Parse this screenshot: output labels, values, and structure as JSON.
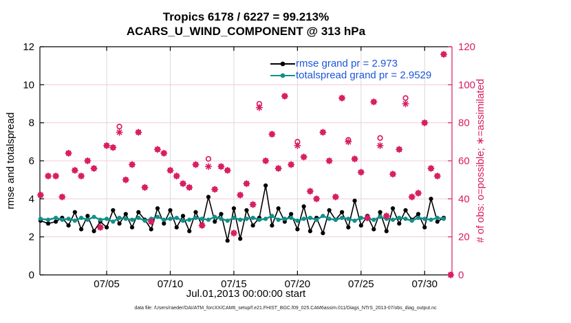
{
  "colors": {
    "pink": "#d81b60",
    "teal": "#12908a",
    "black": "#000000",
    "legend_blue": "#1b56db",
    "grid_pink": "#f3ccd9",
    "grid_gray": "#d9d9d9"
  },
  "header": {
    "title_line1": "Tropics 6178 / 6227 = 99.213%",
    "title_line2": "ACARS_U_WIND_COMPONENT @ 313 hPa"
  },
  "footer": {
    "data_file_text": "data file: /Users/raeder/DAI/ATM_forcXX/CAM6_setup/f.e21.FHIST_BGC.f09_025.CAM6assim.011/Diags_NTrS_2013-07/obs_diag_output.nc"
  },
  "legend": {
    "items": [
      {
        "label": "rmse grand pr = 2.973",
        "color": "#000000"
      },
      {
        "label": "totalspread grand pr = 2.9529",
        "color": "#12908a"
      }
    ]
  },
  "chart_data": {
    "type": "line",
    "title": "Tropics 6178 / 6227 = 99.213%",
    "subtitle": "ACARS_U_WIND_COMPONENT @ 313 hPa",
    "xlabel": "Jul.01,2013 00:00:00 start",
    "ylabel_left": "rmse and totalspread",
    "ylabel_right": "# of obs: o=possible; ∗=assimilated",
    "ylim_left": [
      0,
      12
    ],
    "yticks_left": [
      0,
      2,
      4,
      6,
      8,
      10,
      12
    ],
    "ylim_right": [
      0,
      120
    ],
    "yticks_right": [
      0,
      20,
      40,
      60,
      80,
      100,
      120
    ],
    "x_domain_days": [
      -0.25,
      32.15
    ],
    "xticks": {
      "days": [
        5,
        10,
        15,
        20,
        25,
        30
      ],
      "labels": [
        "07/05",
        "07/10",
        "07/15",
        "07/20",
        "07/25",
        "07/30"
      ]
    },
    "grid": true,
    "legend_position": "top-center-inside",
    "series": [
      {
        "name": "rmse",
        "style": "line-dot",
        "color": "#000000",
        "x": [
          -0.2,
          0.4,
          1,
          1.5,
          2,
          2.5,
          3,
          3.5,
          4,
          4.5,
          5,
          5.5,
          6,
          6.5,
          7,
          7.5,
          8,
          8.5,
          9,
          9.5,
          10,
          10.5,
          11,
          11.5,
          12,
          12.5,
          13,
          13.5,
          14,
          14.5,
          15,
          15.5,
          16,
          16.5,
          17,
          17.5,
          18,
          18.5,
          19,
          19.5,
          20,
          20.5,
          21,
          21.5,
          22,
          22.5,
          23,
          23.5,
          24,
          24.5,
          25,
          25.5,
          26,
          26.5,
          27,
          27.5,
          28,
          28.5,
          29,
          29.5,
          30,
          30.5,
          31,
          31.5
        ],
        "values": [
          2.85,
          2.7,
          2.8,
          3.0,
          2.6,
          3.3,
          2.4,
          3.1,
          2.3,
          2.8,
          2.5,
          3.4,
          2.7,
          3.2,
          2.5,
          3.3,
          2.9,
          2.4,
          3.5,
          2.7,
          3.4,
          2.5,
          3.1,
          2.3,
          3.3,
          2.6,
          4.1,
          2.8,
          3.2,
          1.8,
          3.5,
          1.9,
          3.4,
          2.6,
          3.0,
          4.7,
          2.6,
          3.5,
          2.8,
          3.2,
          2.4,
          3.6,
          2.3,
          3.0,
          2.2,
          3.4,
          2.9,
          3.3,
          2.5,
          3.9,
          2.6,
          3.1,
          2.4,
          3.3,
          2.3,
          3.5,
          2.7,
          3.4,
          2.9,
          3.2,
          2.5,
          4.0,
          2.8,
          3.0
        ]
      },
      {
        "name": "totalspread",
        "style": "line-dot",
        "color": "#12908a",
        "x": [
          -0.2,
          0.4,
          1,
          1.5,
          2,
          2.5,
          3,
          3.5,
          4,
          4.5,
          5,
          5.5,
          6,
          6.5,
          7,
          7.5,
          8,
          8.5,
          9,
          9.5,
          10,
          10.5,
          11,
          11.5,
          12,
          12.5,
          13,
          13.5,
          14,
          14.5,
          15,
          15.5,
          16,
          16.5,
          17,
          17.5,
          18,
          18.5,
          19,
          19.5,
          20,
          20.5,
          21,
          21.5,
          22,
          22.5,
          23,
          23.5,
          24,
          24.5,
          25,
          25.5,
          26,
          26.5,
          27,
          27.5,
          28,
          28.5,
          29,
          29.5,
          30,
          30.5,
          31,
          31.5
        ],
        "values": [
          2.95,
          2.9,
          3.0,
          2.9,
          2.95,
          2.85,
          3.0,
          2.9,
          3.05,
          2.9,
          2.95,
          2.8,
          3.0,
          2.95,
          2.9,
          3.0,
          2.85,
          2.95,
          3.05,
          2.9,
          2.95,
          3.0,
          2.85,
          2.9,
          3.0,
          2.95,
          2.9,
          3.05,
          2.95,
          2.85,
          3.0,
          2.9,
          2.95,
          3.0,
          2.9,
          2.95,
          3.1,
          2.9,
          2.95,
          3.0,
          2.85,
          2.95,
          3.0,
          2.9,
          3.1,
          2.95,
          2.9,
          3.0,
          2.95,
          2.85,
          3.0,
          2.95,
          2.9,
          3.05,
          2.95,
          2.9,
          3.0,
          2.95,
          2.85,
          3.0,
          2.95,
          2.9,
          3.0,
          2.95
        ]
      },
      {
        "name": "possible_obs",
        "style": "circle-marker",
        "color": "#d81b60",
        "axis": "right",
        "x": [
          -0.2,
          0.4,
          1,
          1.5,
          2,
          2.5,
          3,
          3.5,
          4,
          4.5,
          5,
          5.5,
          6,
          6.5,
          7,
          7.5,
          8,
          8.5,
          9,
          9.5,
          10,
          10.5,
          11,
          11.5,
          12,
          12.5,
          13,
          13.5,
          14,
          14.5,
          15,
          15.5,
          16,
          16.5,
          17,
          17.5,
          18,
          18.5,
          19,
          19.5,
          20,
          20.5,
          21,
          21.5,
          22,
          22.5,
          23,
          23.5,
          24,
          24.5,
          25,
          25.5,
          26,
          26.5,
          27,
          27.5,
          28,
          28.5,
          29,
          29.5,
          30,
          30.5,
          31,
          31.5,
          32.05
        ],
        "values": [
          42,
          52,
          52,
          41,
          64,
          55,
          52,
          60,
          56,
          25,
          68,
          67,
          78,
          50,
          58,
          75,
          46,
          28,
          66,
          64,
          55,
          52,
          48,
          46,
          58,
          26,
          61,
          45,
          57,
          55,
          22,
          42,
          48,
          37,
          90,
          60,
          74,
          56,
          94,
          58,
          70,
          62,
          44,
          40,
          75,
          60,
          41,
          93,
          71,
          61,
          54,
          30,
          91,
          72,
          31,
          53,
          66,
          93,
          41,
          43,
          80,
          56,
          52,
          116,
          0
        ]
      },
      {
        "name": "assimilated_obs",
        "style": "asterisk-marker",
        "color": "#d81b60",
        "axis": "right",
        "x": [
          -0.2,
          0.4,
          1,
          1.5,
          2,
          2.5,
          3,
          3.5,
          4,
          4.5,
          5,
          5.5,
          6,
          6.5,
          7,
          7.5,
          8,
          8.5,
          9,
          9.5,
          10,
          10.5,
          11,
          11.5,
          12,
          12.5,
          13,
          13.5,
          14,
          14.5,
          15,
          15.5,
          16,
          16.5,
          17,
          17.5,
          18,
          18.5,
          19,
          19.5,
          20,
          20.5,
          21,
          21.5,
          22,
          22.5,
          23,
          23.5,
          24,
          24.5,
          25,
          25.5,
          26,
          26.5,
          27,
          27.5,
          28,
          28.5,
          29,
          29.5,
          30,
          30.5,
          31,
          31.5,
          32.05
        ],
        "values": [
          42,
          52,
          52,
          41,
          64,
          55,
          52,
          60,
          56,
          25,
          68,
          67,
          75,
          50,
          58,
          75,
          46,
          28,
          66,
          64,
          55,
          52,
          48,
          46,
          58,
          26,
          57,
          45,
          57,
          55,
          22,
          42,
          48,
          37,
          88,
          60,
          74,
          56,
          94,
          58,
          68,
          62,
          44,
          40,
          75,
          60,
          41,
          93,
          70,
          61,
          54,
          30,
          91,
          68,
          31,
          53,
          66,
          90,
          41,
          43,
          80,
          56,
          52,
          116,
          0
        ]
      }
    ]
  }
}
